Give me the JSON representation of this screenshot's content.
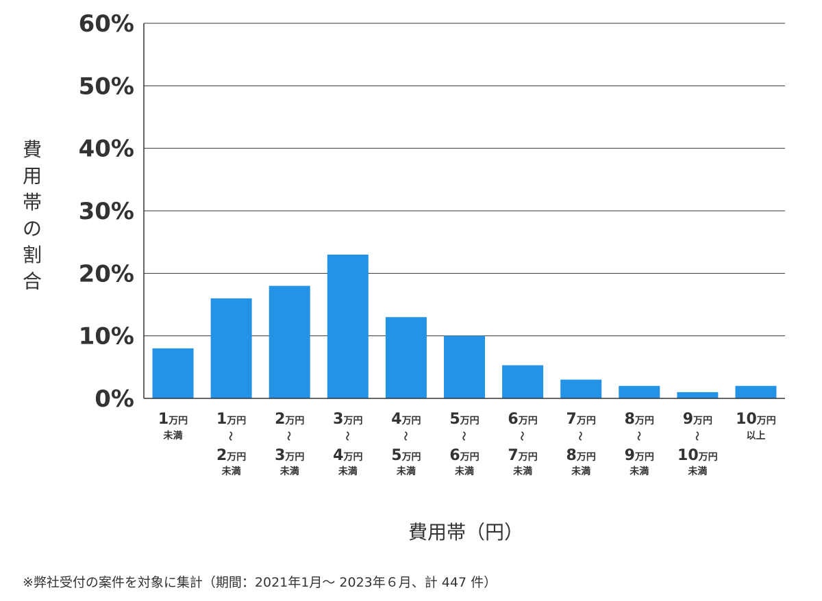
{
  "chart_data": {
    "type": "bar",
    "xlabel": "費用帯（円）",
    "ylabel": "費用帯の割合",
    "ylim": [
      0,
      60
    ],
    "yticks": [
      "0%",
      "10%",
      "20%",
      "30%",
      "40%",
      "50%",
      "60%"
    ],
    "grid": true,
    "categories": [
      "1万円未満",
      "1万円〜2万円未満",
      "2万円〜3万円未満",
      "3万円〜4万円未満",
      "4万円〜5万円未満",
      "5万円〜6万円未満",
      "6万円〜7万円未満",
      "7万円〜8万円未満",
      "8万円〜9万円未満",
      "9万円〜10万円未満",
      "10万円以上"
    ],
    "category_parts": [
      {
        "from": "1",
        "from_unit": "万円",
        "tilde": "",
        "to": "",
        "to_unit": "",
        "suffix": "未満"
      },
      {
        "from": "1",
        "from_unit": "万円",
        "tilde": "〜",
        "to": "2",
        "to_unit": "万円",
        "suffix": "未満"
      },
      {
        "from": "2",
        "from_unit": "万円",
        "tilde": "〜",
        "to": "3",
        "to_unit": "万円",
        "suffix": "未満"
      },
      {
        "from": "3",
        "from_unit": "万円",
        "tilde": "〜",
        "to": "4",
        "to_unit": "万円",
        "suffix": "未満"
      },
      {
        "from": "4",
        "from_unit": "万円",
        "tilde": "〜",
        "to": "5",
        "to_unit": "万円",
        "suffix": "未満"
      },
      {
        "from": "5",
        "from_unit": "万円",
        "tilde": "〜",
        "to": "6",
        "to_unit": "万円",
        "suffix": "未満"
      },
      {
        "from": "6",
        "from_unit": "万円",
        "tilde": "〜",
        "to": "7",
        "to_unit": "万円",
        "suffix": "未満"
      },
      {
        "from": "7",
        "from_unit": "万円",
        "tilde": "〜",
        "to": "8",
        "to_unit": "万円",
        "suffix": "未満"
      },
      {
        "from": "8",
        "from_unit": "万円",
        "tilde": "〜",
        "to": "9",
        "to_unit": "万円",
        "suffix": "未満"
      },
      {
        "from": "9",
        "from_unit": "万円",
        "tilde": "〜",
        "to": "10",
        "to_unit": "万円",
        "suffix": "未満"
      },
      {
        "from": "10",
        "from_unit": "万円",
        "tilde": "",
        "to": "",
        "to_unit": "",
        "suffix": "以上"
      }
    ],
    "values": [
      8,
      16,
      18,
      23,
      13,
      10,
      5.3,
      3,
      2,
      1,
      2
    ],
    "bar_color": "#2493e6",
    "grid_color": "#333333"
  },
  "footnote": "※弊社受付の案件を対象に集計（期間：2021年1月～ 2023年６月、計 447 件）"
}
